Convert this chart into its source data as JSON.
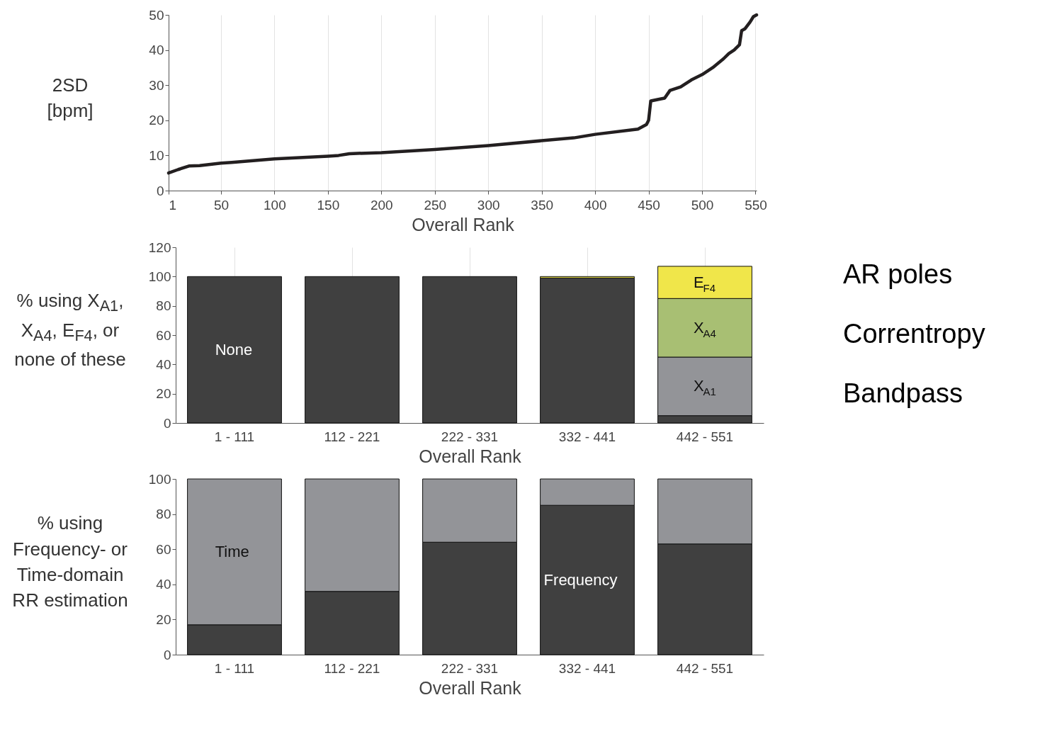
{
  "chart_data": [
    {
      "type": "line",
      "ylabel": "2SD\n[bpm]",
      "xlabel": "Overall Rank",
      "xlim": [
        1,
        551
      ],
      "xticks": [
        1,
        50,
        100,
        150,
        200,
        250,
        300,
        350,
        400,
        450,
        500,
        550
      ],
      "ylim": [
        0,
        50
      ],
      "yticks": [
        0,
        10,
        20,
        30,
        40,
        50
      ],
      "grid": "x",
      "x": [
        1,
        10,
        20,
        30,
        50,
        60,
        100,
        150,
        160,
        170,
        200,
        250,
        300,
        350,
        380,
        400,
        440,
        448,
        450,
        452,
        460,
        465,
        470,
        480,
        490,
        500,
        510,
        520,
        525,
        530,
        535,
        537,
        540,
        545,
        548,
        551
      ],
      "series": [
        {
          "color": "#231f20",
          "values": [
            5,
            6,
            7,
            7.1,
            7.8,
            8,
            9,
            9.8,
            10,
            10.5,
            10.8,
            11.7,
            12.8,
            14.2,
            15,
            16,
            17.5,
            18.8,
            20,
            25.5,
            26,
            26.3,
            28.5,
            29.5,
            31.5,
            33,
            35,
            37.5,
            39,
            40,
            41.5,
            45.5,
            46,
            48,
            49.5,
            50
          ]
        }
      ]
    },
    {
      "type": "bar",
      "stacked": true,
      "ylabel": "% using X$_{A1}$, X$_{A4}$, E$_{F4}$, or none of these",
      "xlabel": "Overall Rank",
      "categories": [
        "1 - 111",
        "112 - 221",
        "222 - 331",
        "332 - 441",
        "442 - 551"
      ],
      "ylim": [
        0,
        120
      ],
      "yticks": [
        0,
        20,
        40,
        60,
        80,
        100,
        120
      ],
      "grid": "x",
      "series": [
        {
          "name": "None",
          "color": "#404040",
          "values": [
            100,
            100,
            100,
            99,
            5
          ]
        },
        {
          "name": "X$_{A1}$",
          "color": "#939498",
          "values": [
            0,
            0,
            0,
            0,
            40
          ]
        },
        {
          "name": "X$_{A4}$",
          "color": "#a8bf73",
          "values": [
            0,
            0,
            0,
            0,
            40
          ]
        },
        {
          "name": "E$_{F4}$",
          "color": "#f0e64a",
          "values": [
            0,
            0,
            0,
            1,
            22
          ]
        }
      ],
      "annotations": [
        "AR poles",
        "Correntropy",
        "Bandpass"
      ]
    },
    {
      "type": "bar",
      "stacked": true,
      "ylabel": "% using Frequency- or Time-domain RR estimation",
      "xlabel": "Overall Rank",
      "categories": [
        "1 - 111",
        "112 - 221",
        "222 - 331",
        "332 - 441",
        "442 - 551"
      ],
      "ylim": [
        0,
        100
      ],
      "yticks": [
        0,
        20,
        40,
        60,
        80,
        100
      ],
      "series": [
        {
          "name": "Frequency",
          "color": "#404040",
          "values": [
            17,
            36,
            64,
            85,
            63
          ]
        },
        {
          "name": "Time",
          "color": "#939498",
          "values": [
            83,
            64,
            36,
            15,
            37
          ]
        }
      ]
    }
  ]
}
